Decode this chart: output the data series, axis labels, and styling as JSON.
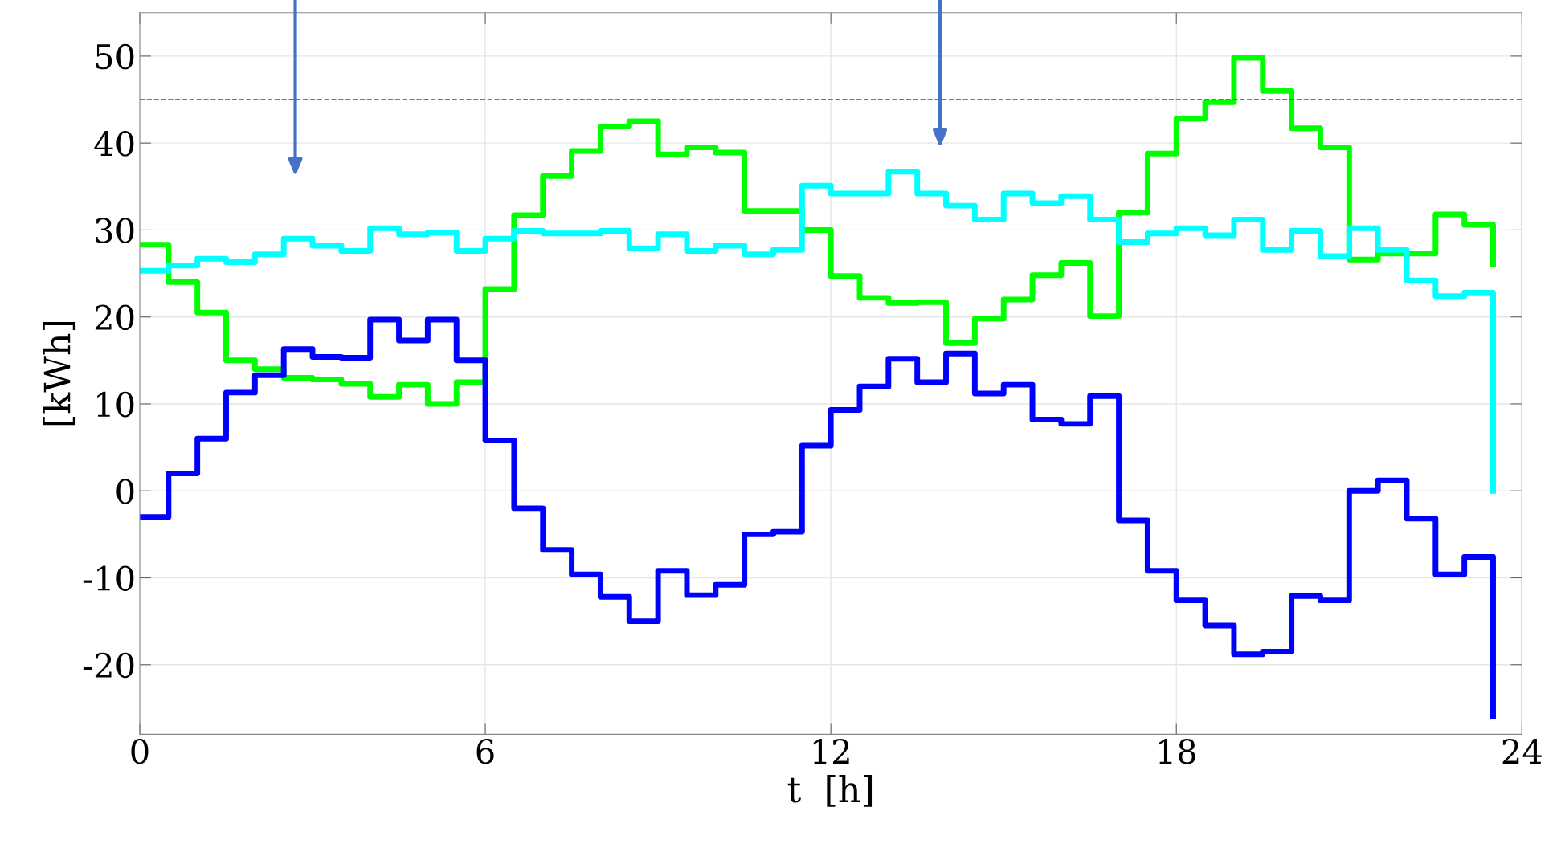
{
  "chart_data": {
    "type": "step",
    "xlabel": "t  [h]",
    "ylabel": "[kWh]",
    "x": [
      0,
      0.5,
      1,
      1.5,
      2,
      2.5,
      3,
      3.5,
      4,
      4.5,
      5,
      5.5,
      6,
      6.5,
      7,
      7.5,
      8,
      8.5,
      9,
      9.5,
      10,
      10.5,
      11,
      11.5,
      12,
      12.5,
      13,
      13.5,
      14,
      14.5,
      15,
      15.5,
      16,
      16.5,
      17,
      17.5,
      18,
      18.5,
      19,
      19.5,
      20,
      20.5,
      21,
      21.5,
      22,
      22.5,
      23,
      23.5
    ],
    "series": [
      {
        "color": "#00ff00",
        "values": [
          28.3,
          24,
          20.5,
          15,
          14,
          13,
          12.8,
          12.3,
          10.8,
          12.2,
          10,
          12.5,
          23.2,
          31.7,
          36.2,
          39.1,
          41.9,
          42.5,
          38.7,
          39.5,
          38.9,
          32.2,
          32.2,
          30,
          24.7,
          22.2,
          21.6,
          21.7,
          17,
          19.8,
          22,
          24.8,
          26.2,
          20.1,
          32,
          38.8,
          42.8,
          44.7,
          49.8,
          46,
          41.7,
          39.5,
          26.6,
          27.3,
          27.3,
          31.8,
          30.6,
          26.1
        ]
      },
      {
        "color": "#00ffff",
        "values": [
          25.3,
          25.9,
          26.7,
          26.3,
          27.2,
          29,
          28.2,
          27.6,
          30.2,
          29.5,
          29.7,
          27.6,
          29,
          29.9,
          29.6,
          29.6,
          29.9,
          27.9,
          29.5,
          27.6,
          28.2,
          27.2,
          27.7,
          35.1,
          34.2,
          34.2,
          36.7,
          34.2,
          32.8,
          31.2,
          34.2,
          33.1,
          33.9,
          31.2,
          28.6,
          29.6,
          30.2,
          29.4,
          31.2,
          27.7,
          29.9,
          27,
          30.2,
          27.7,
          24.2,
          22.4,
          22.8,
          0
        ]
      },
      {
        "color": "#0000ff",
        "values": [
          -3,
          2,
          6,
          11.3,
          13.3,
          16.3,
          15.4,
          15.3,
          19.7,
          17.3,
          19.7,
          15,
          5.8,
          -2,
          -6.8,
          -9.6,
          -12.2,
          -15,
          -9.2,
          -12,
          -10.8,
          -5,
          -4.7,
          5.2,
          9.3,
          12,
          15.2,
          12.5,
          15.8,
          11.2,
          12.2,
          8.2,
          7.7,
          10.9,
          -3.4,
          -9.2,
          -12.6,
          -15.5,
          -18.8,
          -18.5,
          -12.1,
          -12.6,
          0,
          1.2,
          -3.2,
          -9.6,
          -7.6,
          -25.9
        ]
      }
    ],
    "xlim": [
      0,
      24
    ],
    "xticks": [
      0,
      6,
      12,
      18,
      24
    ],
    "ylim": [
      -28,
      55
    ],
    "yticks": [
      -20,
      -10,
      0,
      10,
      20,
      30,
      40,
      50
    ],
    "ref_lines": [
      {
        "axis": "y",
        "value": 45,
        "color": "#ff0000",
        "line_style": "dashed"
      }
    ],
    "grid": true,
    "legend": false
  }
}
